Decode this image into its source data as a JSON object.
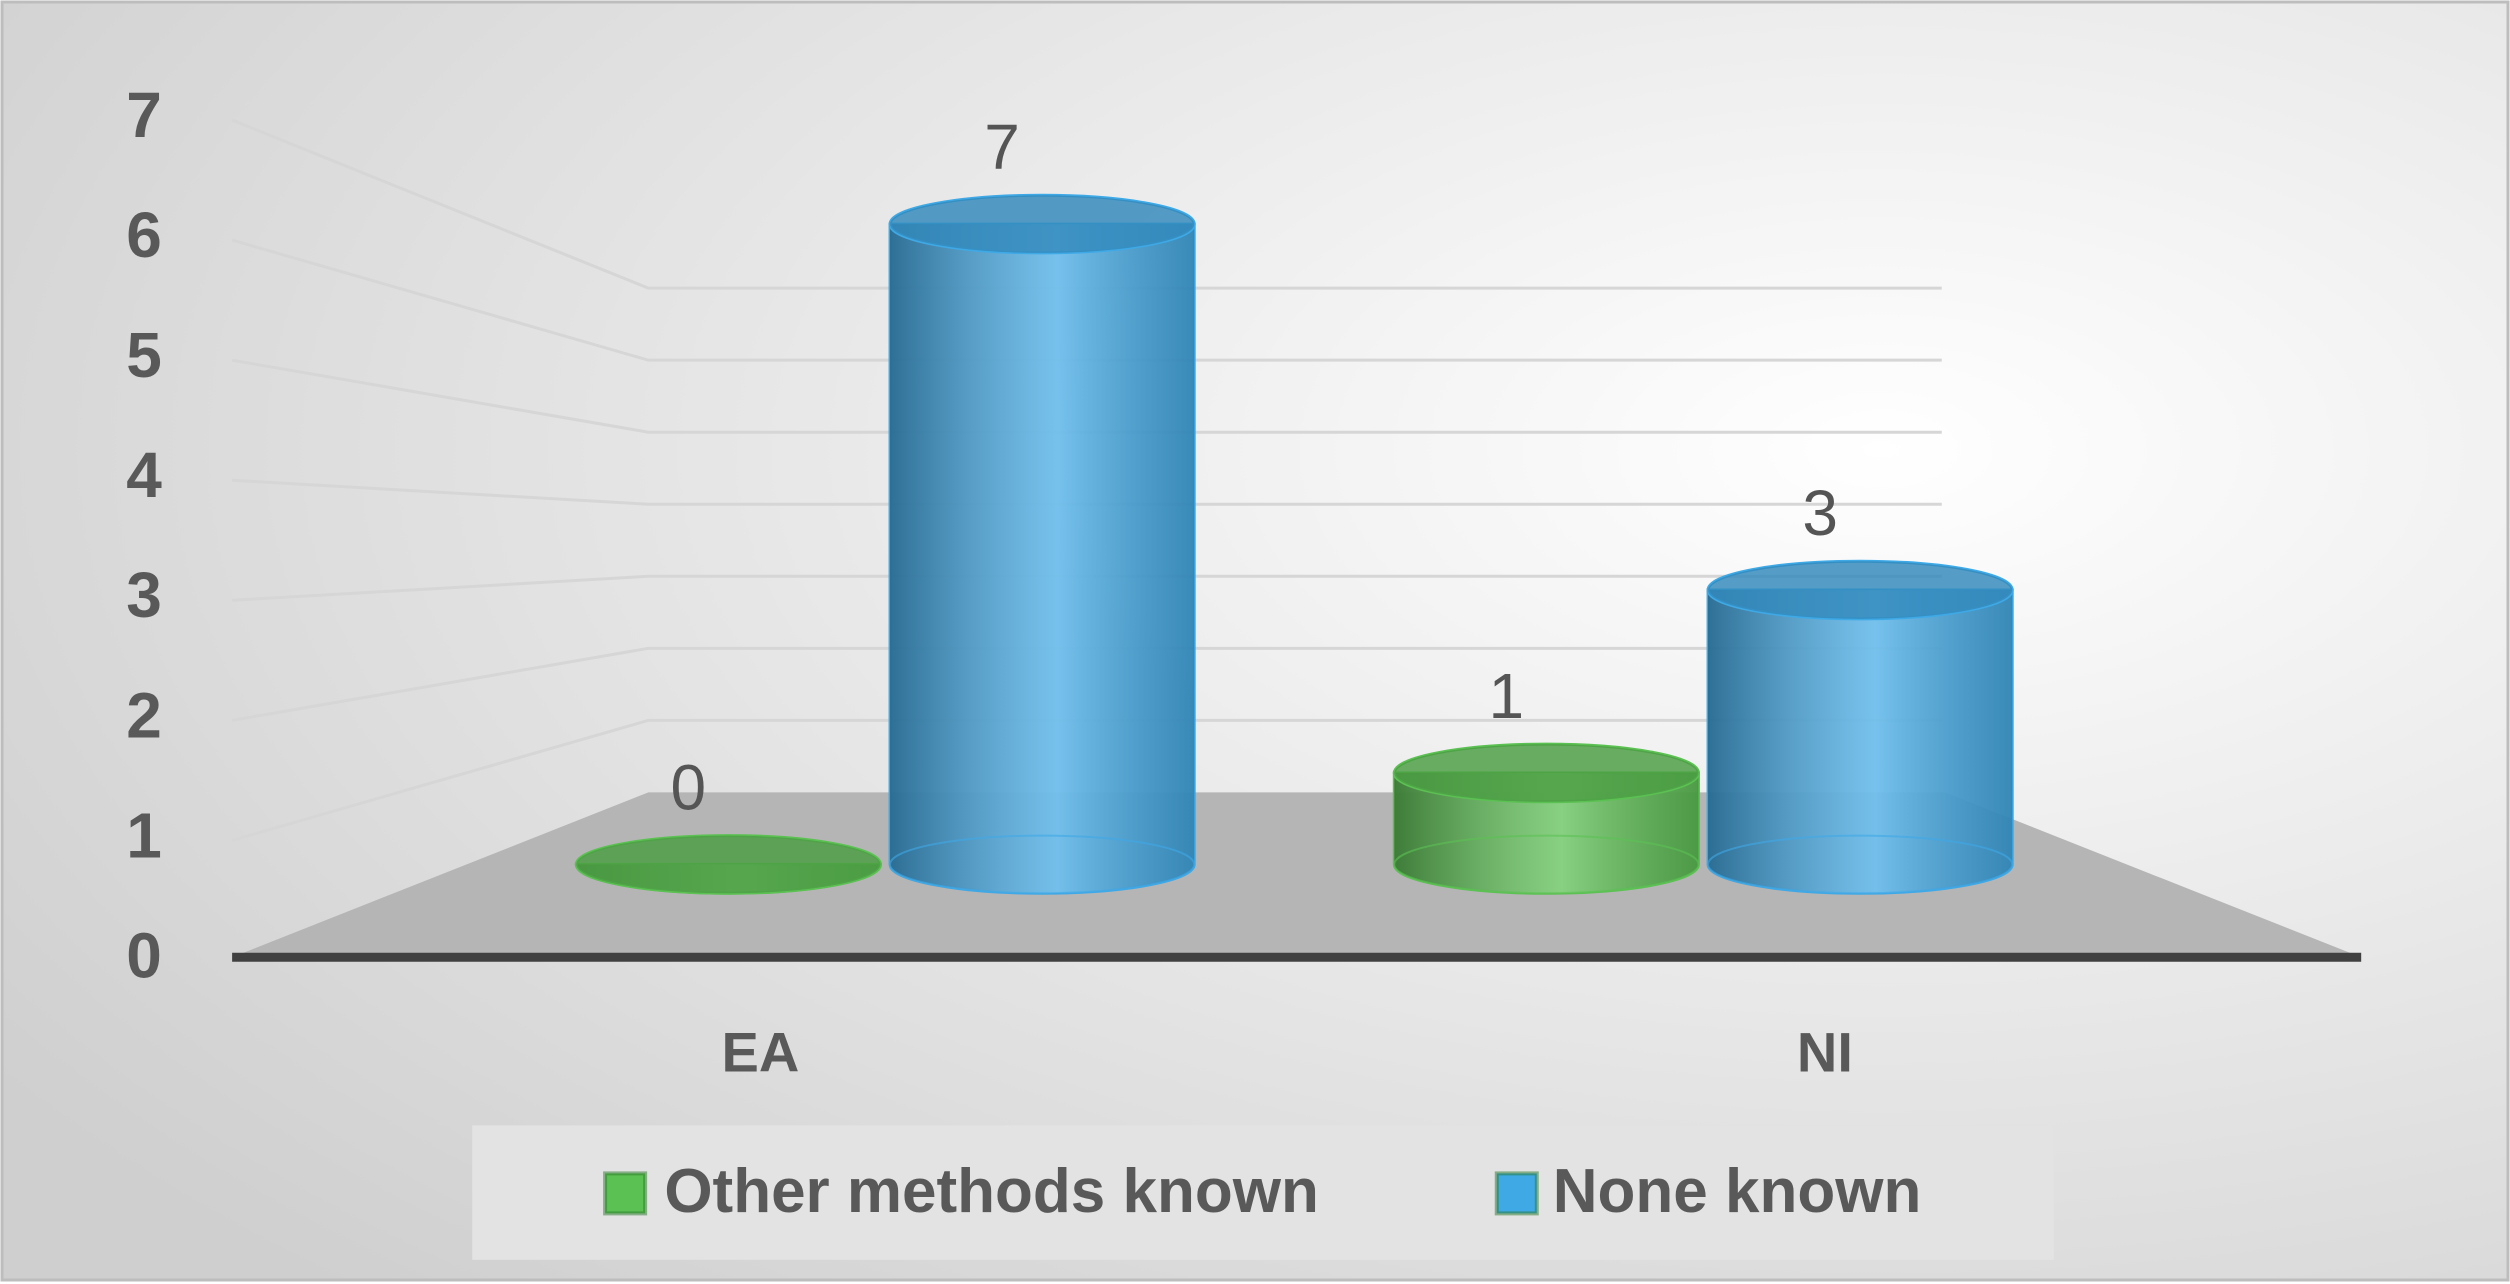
{
  "chart_data": {
    "type": "bar3d",
    "categories": [
      "EA",
      "NI"
    ],
    "series": [
      {
        "name": "Other methods known",
        "color": "#5cc153",
        "values": [
          0,
          1
        ]
      },
      {
        "name": "None known",
        "color": "#3fa9e6",
        "values": [
          7,
          3
        ]
      }
    ],
    "ylim": [
      0,
      7
    ],
    "yticks": [
      0,
      1,
      2,
      3,
      4,
      5,
      6,
      7
    ],
    "grid": true,
    "legend": "bottom"
  }
}
